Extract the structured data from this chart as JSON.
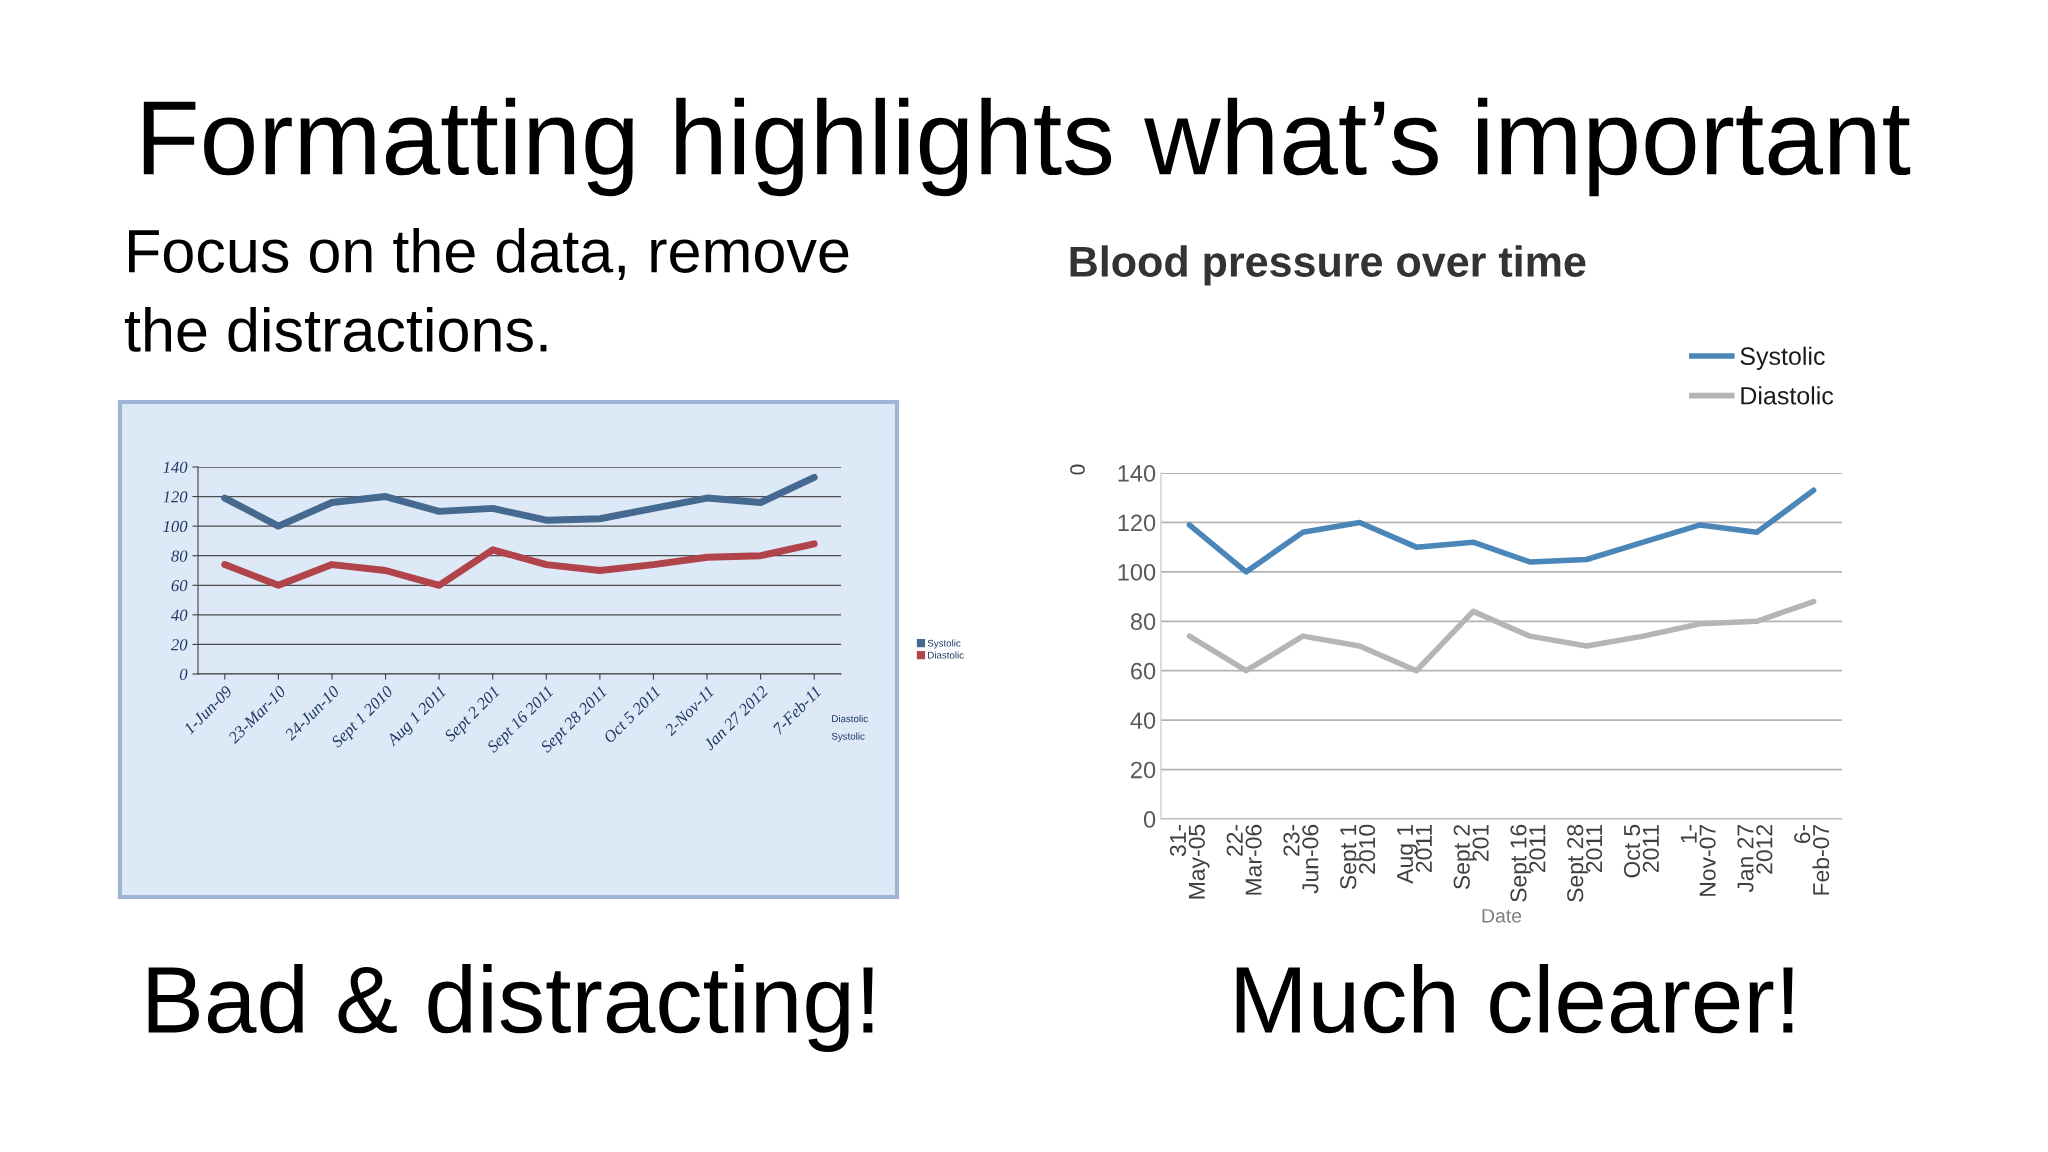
{
  "chart_data": [
    {
      "type": "other",
      "title": "Formatting highlights what’s important",
      "annotations": [
        "Focus on the data, remove\nthe distractions."
      ]
    },
    {
      "type": "line",
      "categories": [
        "1-Jun-09",
        "23-Mar-10",
        "24-Jun-10",
        "Sept 1 2010",
        "Aug 1 2011",
        "Sept 2 201",
        "Sept 16 2011",
        "Sept 28 2011",
        "Oct 5 2011",
        "2-Nov-11",
        "Jan 27 2012",
        "7-Feb-11"
      ],
      "series": [
        {
          "name": "Systolic",
          "color": "#45698f",
          "values": [
            119,
            100,
            116,
            120,
            110,
            112,
            104,
            105,
            112,
            119,
            116,
            133
          ]
        },
        {
          "name": "Diastolic",
          "color": "#b0444a",
          "values": [
            74,
            60,
            74,
            70,
            60,
            84,
            74,
            70,
            74,
            79,
            80,
            88
          ]
        }
      ],
      "ylim": [
        0,
        140
      ],
      "yticks": [
        0,
        20,
        40,
        60,
        80,
        100,
        120,
        140
      ],
      "grid": "y",
      "legend": "right",
      "annotations": [
        "Diastolic",
        "Systolic",
        "Bad & distracting!"
      ]
    },
    {
      "type": "line",
      "title": "Blood pressure over time",
      "xlabel": "Date",
      "ylabel": "0",
      "categories": [
        "31-\nMay-05",
        "22-\nMar-06",
        "23-\nJun-06",
        "Sept 1\n2010",
        "Aug 1\n2011",
        "Sept 2\n201",
        "Sept 16\n2011",
        "Sept 28\n2011",
        "Oct 5\n2011",
        "1-\nNov-07",
        "Jan 27\n2012",
        "6-\nFeb-07"
      ],
      "series": [
        {
          "name": "Systolic",
          "color": "#4a86b8",
          "values": [
            119,
            100,
            116,
            120,
            110,
            112,
            104,
            105,
            112,
            119,
            116,
            133
          ]
        },
        {
          "name": "Diastolic",
          "color": "#b5b5b5",
          "values": [
            74,
            60,
            74,
            70,
            60,
            84,
            74,
            70,
            74,
            79,
            80,
            88
          ]
        }
      ],
      "ylim": [
        0,
        140
      ],
      "yticks": [
        0,
        20,
        40,
        60,
        80,
        100,
        120,
        140
      ],
      "grid": "y",
      "legend": "top right",
      "annotations": [
        "Much clearer!"
      ]
    }
  ]
}
